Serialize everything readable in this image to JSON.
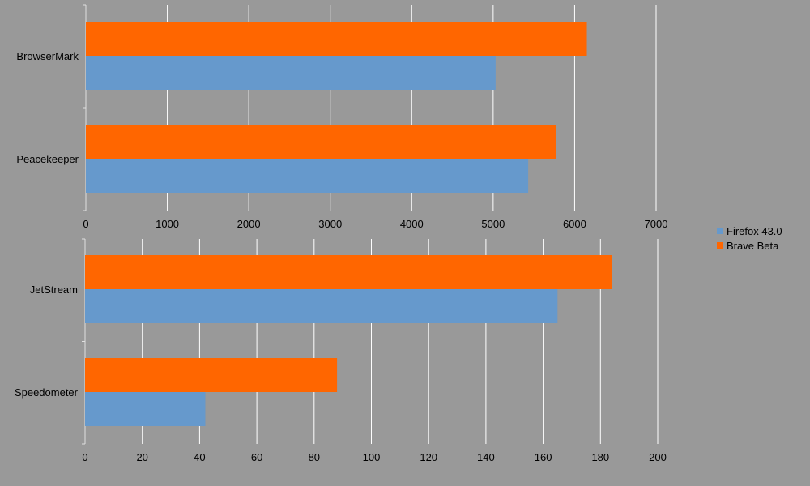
{
  "colors": {
    "firefox": "#6699cc",
    "brave": "#ff6600",
    "grid": "#ffffff",
    "axis": "#e0e0e0",
    "background": "#999999"
  },
  "legend": [
    {
      "label": "Firefox 43.0",
      "color": "#6699cc"
    },
    {
      "label": "Brave Beta",
      "color": "#ff6600"
    }
  ],
  "chart_data": [
    {
      "type": "bar",
      "orientation": "horizontal",
      "categories": [
        "BrowserMark",
        "Peacekeeper"
      ],
      "series": [
        {
          "name": "Brave Beta",
          "values": [
            6150,
            5770
          ]
        },
        {
          "name": "Firefox 43.0",
          "values": [
            5030,
            5430
          ]
        }
      ],
      "xlim": [
        0,
        7000
      ],
      "xticks": [
        0,
        1000,
        2000,
        3000,
        4000,
        5000,
        6000,
        7000
      ],
      "grid": true
    },
    {
      "type": "bar",
      "orientation": "horizontal",
      "categories": [
        "JetStream",
        "Speedometer"
      ],
      "series": [
        {
          "name": "Brave Beta",
          "values": [
            184,
            88
          ]
        },
        {
          "name": "Firefox 43.0",
          "values": [
            165,
            42
          ]
        }
      ],
      "xlim": [
        0,
        200
      ],
      "xticks": [
        0,
        20,
        40,
        60,
        80,
        100,
        120,
        140,
        160,
        180,
        200
      ],
      "grid": true
    }
  ]
}
